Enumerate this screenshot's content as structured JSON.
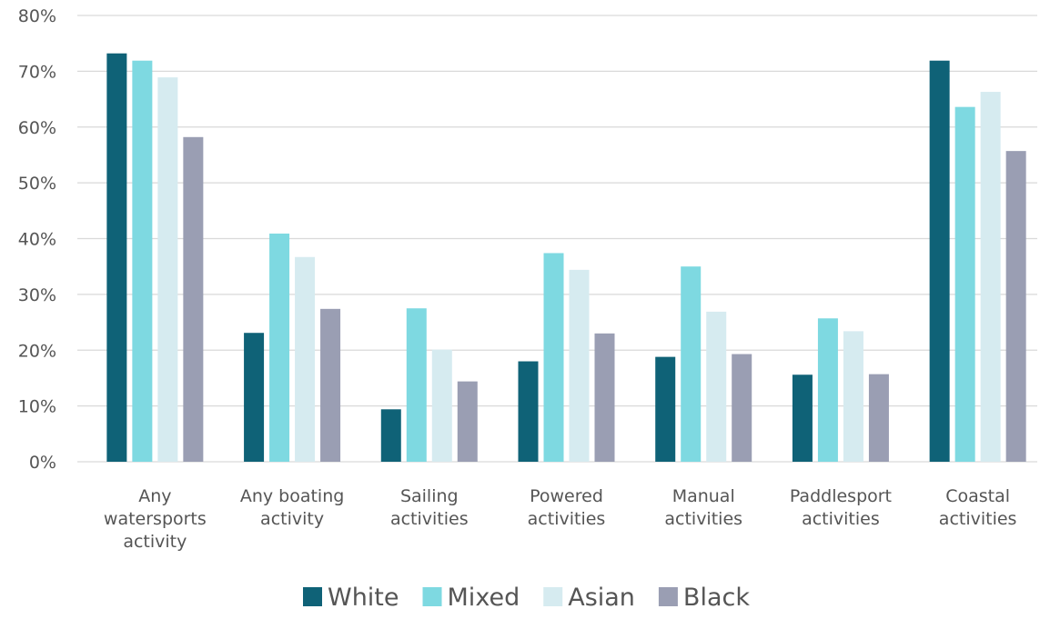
{
  "chart_data": {
    "type": "bar",
    "title": "",
    "xlabel": "",
    "ylabel": "",
    "ylim": [
      0,
      80
    ],
    "yticks": [
      0,
      10,
      20,
      30,
      40,
      50,
      60,
      70,
      80
    ],
    "ytick_suffix": "%",
    "grid": true,
    "legend_position": "bottom",
    "categories": [
      [
        "Any",
        "watersports",
        "activity"
      ],
      [
        "Any boating",
        "activity"
      ],
      [
        "Sailing",
        "activities"
      ],
      [
        "Powered",
        "activities"
      ],
      [
        "Manual",
        "activities"
      ],
      [
        "Paddlesport",
        "activities"
      ],
      [
        "Coastal",
        "activities"
      ]
    ],
    "series": [
      {
        "name": "White",
        "color": "#0f6277",
        "values": [
          73.2,
          23.1,
          9.4,
          18.0,
          18.8,
          15.6,
          71.9
        ]
      },
      {
        "name": "Mixed",
        "color": "#7ed9e1",
        "values": [
          71.9,
          40.9,
          27.5,
          37.4,
          35.0,
          25.7,
          63.6
        ]
      },
      {
        "name": "Asian",
        "color": "#d6ebf0",
        "values": [
          68.9,
          36.7,
          20.1,
          34.4,
          26.9,
          23.4,
          66.3
        ]
      },
      {
        "name": "Black",
        "color": "#9a9eb3",
        "values": [
          58.2,
          27.4,
          14.4,
          23.0,
          19.3,
          15.7,
          55.7
        ]
      }
    ]
  }
}
